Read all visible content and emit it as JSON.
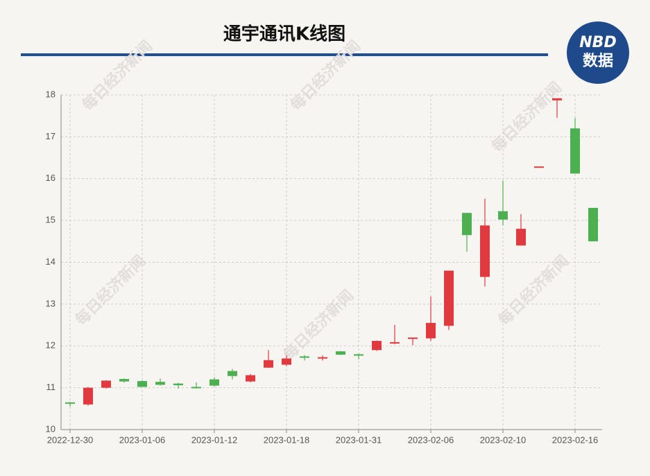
{
  "chart_data": {
    "type": "candlestick",
    "title": "通宇通讯K线图",
    "logo": {
      "top": "NBD",
      "bottom": "数据"
    },
    "watermark": "每日经济新闻",
    "categories": [
      "2022-12-30",
      null,
      null,
      null,
      "2023-01-06",
      null,
      null,
      null,
      "2023-01-12",
      null,
      null,
      null,
      "2023-01-18",
      null,
      null,
      null,
      "2023-01-31",
      null,
      null,
      null,
      "2023-02-06",
      null,
      null,
      null,
      "2023-02-10",
      null,
      null,
      null,
      "2023-02-16",
      null
    ],
    "open": [
      10.65,
      10.6,
      11.0,
      11.21,
      11.16,
      11.14,
      11.1,
      11.02,
      11.2,
      11.4,
      11.15,
      11.48,
      11.55,
      11.75,
      11.71,
      11.87,
      11.8,
      11.9,
      12.06,
      12.17,
      12.18,
      12.48,
      15.18,
      13.65,
      15.22,
      14.4,
      16.29,
      17.87,
      17.2,
      15.3
    ],
    "high": [
      10.66,
      11.02,
      11.18,
      11.22,
      11.18,
      11.22,
      11.12,
      11.13,
      11.25,
      11.45,
      11.33,
      11.9,
      11.78,
      11.78,
      11.77,
      11.88,
      11.82,
      12.13,
      12.5,
      12.2,
      13.18,
      13.8,
      15.18,
      15.52,
      15.95,
      15.15,
      16.29,
      17.92,
      17.45,
      15.3
    ],
    "low": [
      10.55,
      10.57,
      10.98,
      11.12,
      11.02,
      11.05,
      10.98,
      10.98,
      11.03,
      11.2,
      11.13,
      11.47,
      11.52,
      11.65,
      11.65,
      11.78,
      11.68,
      11.88,
      12.04,
      12.02,
      12.12,
      12.38,
      14.25,
      13.42,
      14.88,
      14.4,
      16.29,
      17.45,
      16.12,
      14.5
    ],
    "close": [
      10.62,
      11.0,
      11.17,
      11.15,
      11.02,
      11.07,
      11.06,
      10.99,
      11.05,
      11.28,
      11.3,
      11.66,
      11.7,
      11.72,
      11.73,
      11.79,
      11.78,
      12.12,
      12.09,
      12.2,
      12.55,
      13.8,
      14.65,
      14.88,
      15.02,
      14.8,
      16.29,
      17.92,
      16.12,
      14.5
    ],
    "up_color": "#e0393e",
    "down_color": "#4caf50",
    "ylim": [
      10,
      18
    ],
    "yticks": [
      10,
      11,
      12,
      13,
      14,
      15,
      16,
      17,
      18
    ],
    "grid": true
  }
}
